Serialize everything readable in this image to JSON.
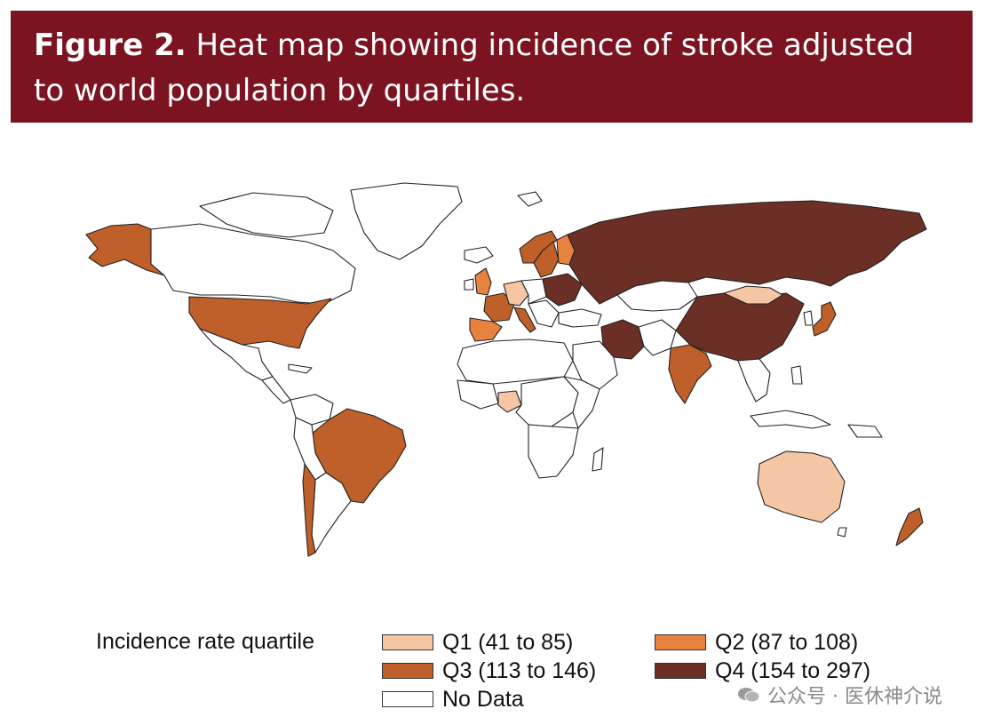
{
  "figure": {
    "label": "Figure 2.",
    "title": "Heat map showing incidence of stroke adjusted",
    "title_line2": "to world population by quartiles."
  },
  "legend": {
    "title": "Incidence rate quartile",
    "items": [
      {
        "key": "q1",
        "label": "Q1 (41 to 85)",
        "color": "#f5c6a4"
      },
      {
        "key": "q2",
        "label": "Q2 (87 to 108)",
        "color": "#e8833f"
      },
      {
        "key": "q3",
        "label": "Q3 (113 to 146)",
        "color": "#bf5f2a"
      },
      {
        "key": "q4",
        "label": "Q4 (154 to 297)",
        "color": "#6b2f26"
      },
      {
        "key": "nodata",
        "label": "No Data",
        "color": "#ffffff"
      }
    ]
  },
  "map_data": {
    "Alaska": "q3",
    "United States": "q3",
    "Brazil": "q3",
    "Chile": "q3",
    "Nigeria": "q1",
    "Australia": "q1",
    "New Zealand": "q3",
    "Russia": "q4",
    "China": "q4",
    "Mongolia": "q1",
    "India": "q3",
    "Iran": "q4",
    "Japan": "q3",
    "Norway": "q3",
    "Sweden": "q3",
    "Finland": "q2",
    "United Kingdom": "q2",
    "Germany": "q1",
    "Spain": "q2",
    "France": "q3",
    "Italy": "q3",
    "Ukraine": "q4"
  },
  "watermark": {
    "icon": "wechat-icon",
    "text": "公众号 · 医休神介说"
  }
}
